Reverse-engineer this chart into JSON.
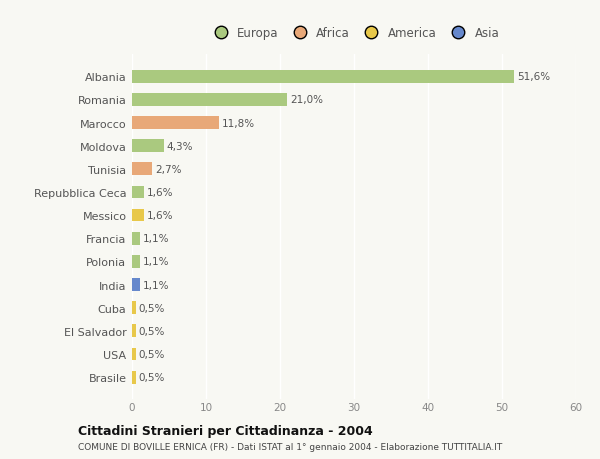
{
  "categories": [
    "Albania",
    "Romania",
    "Marocco",
    "Moldova",
    "Tunisia",
    "Repubblica Ceca",
    "Messico",
    "Francia",
    "Polonia",
    "India",
    "Cuba",
    "El Salvador",
    "USA",
    "Brasile"
  ],
  "values": [
    51.6,
    21.0,
    11.8,
    4.3,
    2.7,
    1.6,
    1.6,
    1.1,
    1.1,
    1.1,
    0.5,
    0.5,
    0.5,
    0.5
  ],
  "labels": [
    "51,6%",
    "21,0%",
    "11,8%",
    "4,3%",
    "2,7%",
    "1,6%",
    "1,6%",
    "1,1%",
    "1,1%",
    "1,1%",
    "0,5%",
    "0,5%",
    "0,5%",
    "0,5%"
  ],
  "continents": [
    "Europa",
    "Europa",
    "Africa",
    "Europa",
    "Africa",
    "Europa",
    "America",
    "Europa",
    "Europa",
    "Asia",
    "America",
    "America",
    "America",
    "America"
  ],
  "continent_colors": {
    "Europa": "#aac97f",
    "Africa": "#e8a878",
    "America": "#e8c84a",
    "Asia": "#6688cc"
  },
  "legend_items": [
    "Europa",
    "Africa",
    "America",
    "Asia"
  ],
  "legend_colors": [
    "#aac97f",
    "#e8a878",
    "#e8c84a",
    "#6688cc"
  ],
  "xlim": [
    0,
    60
  ],
  "xticks": [
    0,
    10,
    20,
    30,
    40,
    50,
    60
  ],
  "title": "Cittadini Stranieri per Cittadinanza - 2004",
  "subtitle": "COMUNE DI BOVILLE ERNICA (FR) - Dati ISTAT al 1° gennaio 2004 - Elaborazione TUTTITALIA.IT",
  "background_color": "#f8f8f3",
  "bar_height": 0.55
}
